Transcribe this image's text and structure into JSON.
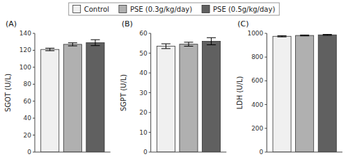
{
  "chart_data": [
    {
      "type": "bar",
      "title": "(A)",
      "ylabel": "SGOT (U/L)",
      "ylim": [
        0,
        140
      ],
      "yticks": [
        0,
        20,
        40,
        60,
        80,
        100,
        120,
        140
      ],
      "grid": false,
      "legend": "top",
      "tick_labels": "y",
      "series": [
        {
          "name": "Control",
          "color": "#f0f0f0",
          "values": [
            121
          ],
          "errors": [
            1.5
          ]
        },
        {
          "name": "PSE (0.3g/kg/day)",
          "color": "#b0b0b0",
          "values": [
            127
          ],
          "errors": [
            1.8
          ]
        },
        {
          "name": "PSE (0.5g/kg/day)",
          "color": "#606060",
          "values": [
            129
          ],
          "errors": [
            3.5
          ]
        }
      ]
    },
    {
      "type": "bar",
      "title": "(B)",
      "ylabel": "SGPT (U/L)",
      "ylim": [
        0,
        60
      ],
      "yticks": [
        0,
        10,
        20,
        30,
        40,
        50,
        60
      ],
      "grid": false,
      "legend": "top",
      "tick_labels": "y",
      "series": [
        {
          "name": "Control",
          "color": "#f0f0f0",
          "values": [
            53.5
          ],
          "errors": [
            1.2
          ]
        },
        {
          "name": "PSE (0.3g/kg/day)",
          "color": "#b0b0b0",
          "values": [
            54.5
          ],
          "errors": [
            1.0
          ]
        },
        {
          "name": "PSE (0.5g/kg/day)",
          "color": "#606060",
          "values": [
            56.0
          ],
          "errors": [
            1.8
          ]
        }
      ]
    },
    {
      "type": "bar",
      "title": "(C)",
      "ylabel": "LDH (U/L)",
      "ylim": [
        0,
        1000
      ],
      "yticks": [
        0,
        200,
        400,
        600,
        800,
        1000
      ],
      "grid": false,
      "legend": "top",
      "tick_labels": "y",
      "series": [
        {
          "name": "Control",
          "color": "#f0f0f0",
          "values": [
            975
          ],
          "errors": [
            5
          ]
        },
        {
          "name": "PSE (0.3g/kg/day)",
          "color": "#b0b0b0",
          "values": [
            982
          ],
          "errors": [
            4
          ]
        },
        {
          "name": "PSE (0.5g/kg/day)",
          "color": "#606060",
          "values": [
            987
          ],
          "errors": [
            4
          ]
        }
      ]
    }
  ]
}
